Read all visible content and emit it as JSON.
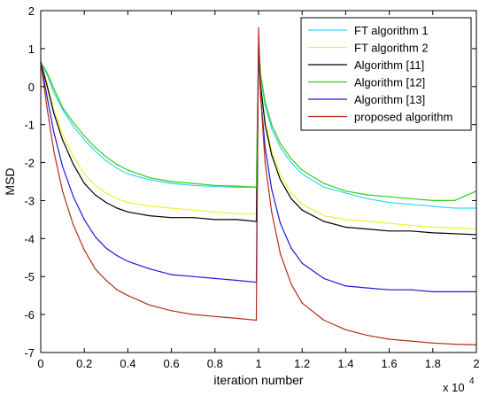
{
  "chart_data": {
    "type": "line",
    "xlabel": "iteration number",
    "ylabel": "MSD",
    "x_multiplier_label": "x 10",
    "x_multiplier_exponent": "4",
    "xlim": [
      0,
      2
    ],
    "ylim": [
      -7,
      2
    ],
    "xticks": [
      0,
      0.2,
      0.4,
      0.6,
      0.8,
      1,
      1.2,
      1.4,
      1.6,
      1.8,
      2
    ],
    "xtick_labels": [
      "0",
      "0.2",
      "0.4",
      "0.6",
      "0.8",
      "1",
      "1.2",
      "1.4",
      "1.6",
      "1.8",
      "2"
    ],
    "yticks": [
      2,
      1,
      0,
      -1,
      -2,
      -3,
      -4,
      -5,
      -6,
      -7
    ],
    "ytick_labels": [
      "2",
      "1",
      "0",
      "-1",
      "-2",
      "-3",
      "-4",
      "-5",
      "-6",
      "-7"
    ],
    "grid": false,
    "legend_position": "top-right",
    "series": [
      {
        "name": "FT algorithm 1",
        "color": "#33d6f2",
        "x": [
          0,
          0.03,
          0.06,
          0.1,
          0.15,
          0.2,
          0.25,
          0.3,
          0.35,
          0.4,
          0.5,
          0.6,
          0.7,
          0.8,
          0.9,
          0.99,
          1.0,
          1.01,
          1.03,
          1.06,
          1.1,
          1.15,
          1.2,
          1.3,
          1.4,
          1.5,
          1.6,
          1.7,
          1.8,
          1.9,
          2.0
        ],
        "y": [
          0.65,
          0.3,
          -0.15,
          -0.6,
          -1.05,
          -1.4,
          -1.7,
          -1.95,
          -2.15,
          -2.3,
          -2.45,
          -2.55,
          -2.6,
          -2.63,
          -2.65,
          -2.65,
          1.1,
          0.2,
          -0.5,
          -1.1,
          -1.6,
          -2.0,
          -2.3,
          -2.65,
          -2.8,
          -2.95,
          -3.05,
          -3.1,
          -3.15,
          -3.2,
          -3.2
        ]
      },
      {
        "name": "FT algorithm 2",
        "color": "#f2f22a",
        "x": [
          0,
          0.03,
          0.06,
          0.1,
          0.15,
          0.2,
          0.25,
          0.3,
          0.35,
          0.4,
          0.5,
          0.6,
          0.7,
          0.8,
          0.9,
          0.99,
          1.0,
          1.01,
          1.03,
          1.06,
          1.1,
          1.15,
          1.2,
          1.3,
          1.4,
          1.5,
          1.6,
          1.7,
          1.8,
          1.9,
          2.0
        ],
        "y": [
          0.65,
          0.05,
          -0.6,
          -1.25,
          -1.85,
          -2.3,
          -2.6,
          -2.8,
          -2.95,
          -3.05,
          -3.15,
          -3.2,
          -3.25,
          -3.3,
          -3.35,
          -3.35,
          1.1,
          0.0,
          -0.9,
          -1.7,
          -2.3,
          -2.8,
          -3.1,
          -3.4,
          -3.5,
          -3.55,
          -3.6,
          -3.65,
          -3.7,
          -3.72,
          -3.75
        ]
      },
      {
        "name": "Algorithm [11]",
        "color": "#000000",
        "x": [
          0,
          0.03,
          0.06,
          0.1,
          0.15,
          0.2,
          0.25,
          0.3,
          0.35,
          0.4,
          0.5,
          0.6,
          0.7,
          0.8,
          0.9,
          0.99,
          1.0,
          1.01,
          1.03,
          1.06,
          1.1,
          1.15,
          1.2,
          1.3,
          1.4,
          1.5,
          1.6,
          1.7,
          1.8,
          1.9,
          2.0
        ],
        "y": [
          0.65,
          0.0,
          -0.7,
          -1.4,
          -2.05,
          -2.55,
          -2.85,
          -3.05,
          -3.2,
          -3.3,
          -3.4,
          -3.45,
          -3.45,
          -3.5,
          -3.5,
          -3.55,
          1.05,
          0.0,
          -1.0,
          -1.8,
          -2.45,
          -2.95,
          -3.25,
          -3.55,
          -3.7,
          -3.75,
          -3.8,
          -3.8,
          -3.85,
          -3.87,
          -3.9
        ]
      },
      {
        "name": "Algorithm [12]",
        "color": "#33cc1a",
        "x": [
          0,
          0.03,
          0.06,
          0.1,
          0.15,
          0.2,
          0.25,
          0.3,
          0.35,
          0.4,
          0.5,
          0.6,
          0.7,
          0.8,
          0.9,
          0.99,
          1.0,
          1.01,
          1.03,
          1.06,
          1.1,
          1.15,
          1.2,
          1.3,
          1.4,
          1.5,
          1.6,
          1.7,
          1.8,
          1.9,
          2.0
        ],
        "y": [
          0.65,
          0.35,
          -0.05,
          -0.55,
          -0.95,
          -1.3,
          -1.6,
          -1.85,
          -2.05,
          -2.2,
          -2.4,
          -2.5,
          -2.55,
          -2.6,
          -2.62,
          -2.65,
          1.1,
          0.3,
          -0.4,
          -1.0,
          -1.5,
          -1.9,
          -2.2,
          -2.55,
          -2.75,
          -2.85,
          -2.9,
          -2.95,
          -3.0,
          -3.0,
          -2.75
        ]
      },
      {
        "name": "Algorithm [13]",
        "color": "#1a1ad9",
        "x": [
          0,
          0.03,
          0.06,
          0.1,
          0.15,
          0.2,
          0.25,
          0.3,
          0.35,
          0.4,
          0.5,
          0.6,
          0.7,
          0.8,
          0.9,
          0.99,
          1.0,
          1.01,
          1.03,
          1.06,
          1.1,
          1.15,
          1.2,
          1.3,
          1.4,
          1.5,
          1.6,
          1.7,
          1.8,
          1.9,
          2.0
        ],
        "y": [
          0.65,
          -0.3,
          -1.2,
          -2.1,
          -2.9,
          -3.5,
          -3.95,
          -4.25,
          -4.45,
          -4.6,
          -4.8,
          -4.95,
          -5.0,
          -5.05,
          -5.1,
          -5.15,
          1.0,
          -0.3,
          -1.6,
          -2.7,
          -3.6,
          -4.25,
          -4.65,
          -5.05,
          -5.25,
          -5.3,
          -5.35,
          -5.35,
          -5.4,
          -5.4,
          -5.4
        ]
      },
      {
        "name": "proposed algorithm",
        "color": "#b32d1a",
        "x": [
          0,
          0.03,
          0.06,
          0.1,
          0.15,
          0.2,
          0.25,
          0.3,
          0.35,
          0.4,
          0.5,
          0.6,
          0.7,
          0.8,
          0.9,
          0.99,
          1.0,
          1.01,
          1.03,
          1.06,
          1.1,
          1.15,
          1.2,
          1.3,
          1.4,
          1.5,
          1.6,
          1.7,
          1.8,
          1.9,
          2.0
        ],
        "y": [
          0.65,
          -0.6,
          -1.7,
          -2.75,
          -3.65,
          -4.3,
          -4.8,
          -5.1,
          -5.35,
          -5.5,
          -5.75,
          -5.9,
          -6.0,
          -6.05,
          -6.1,
          -6.15,
          1.55,
          -0.3,
          -2.0,
          -3.3,
          -4.4,
          -5.2,
          -5.7,
          -6.15,
          -6.4,
          -6.55,
          -6.65,
          -6.7,
          -6.75,
          -6.78,
          -6.8
        ]
      }
    ]
  }
}
